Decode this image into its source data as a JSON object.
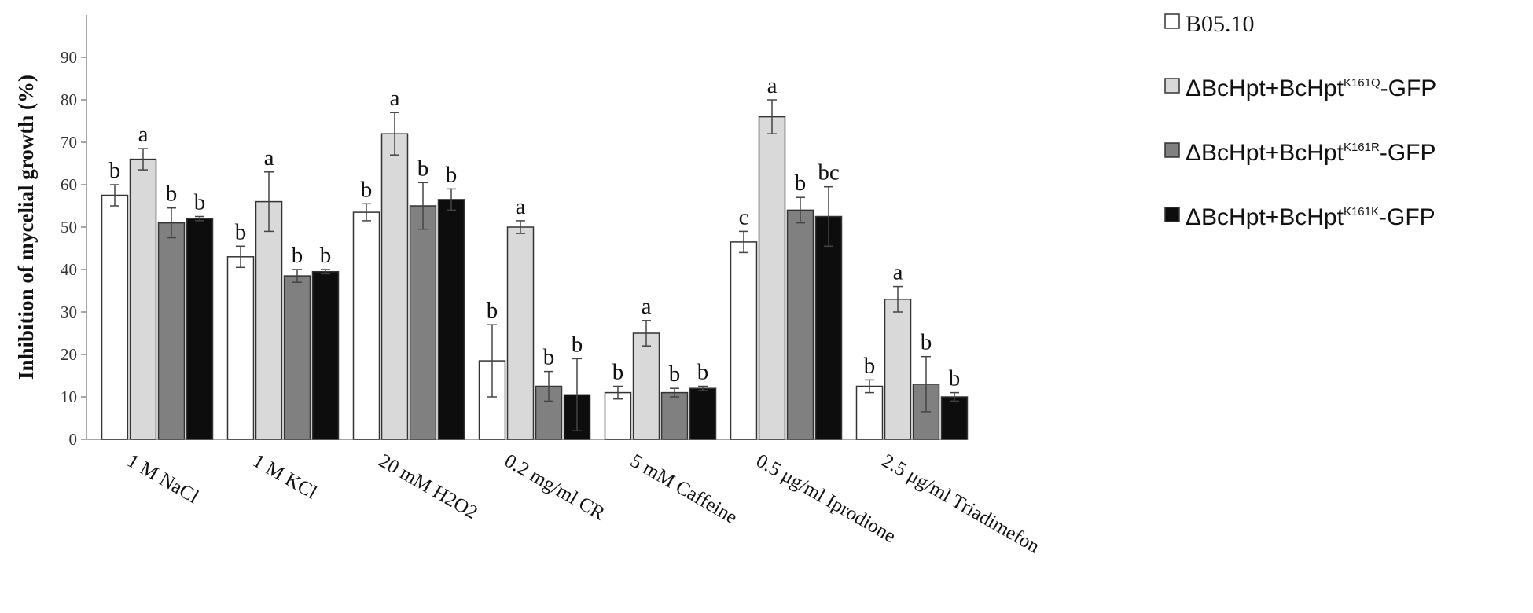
{
  "chart_data": {
    "type": "bar",
    "ylabel": "Inhibition of mycelial growth (%)",
    "ylim": [
      0,
      100
    ],
    "yticks": [
      "0",
      "10",
      "20",
      "30",
      "40",
      "50",
      "60",
      "70",
      "80",
      "90"
    ],
    "categories": [
      "1 M NaCl",
      "1 M KCl",
      "20 mM H2O2",
      "0.2 mg/ml CR",
      "5 mM Caffeine",
      "0.5 μg/ml Iprodione",
      "2.5 μg/ml Triadimefon"
    ],
    "series": [
      {
        "name": "B05.10",
        "color": "#ffffff",
        "values": [
          57.5,
          43,
          53.5,
          18.5,
          11,
          46.5,
          12.5
        ],
        "errors": [
          2.5,
          2.5,
          2,
          8.5,
          1.5,
          2.5,
          1.5
        ],
        "letters": [
          "b",
          "b",
          "b",
          "b",
          "b",
          "c",
          "b"
        ]
      },
      {
        "name": "ΔBcHpt+BcHptK161Q-GFP",
        "name_parts": [
          "ΔBcHpt+BcHpt",
          "K161Q",
          "-GFP"
        ],
        "color": "#d9d9d9",
        "values": [
          66,
          56,
          72,
          50,
          25,
          76,
          33
        ],
        "errors": [
          2.5,
          7,
          5,
          1.5,
          3,
          4,
          3
        ],
        "letters": [
          "a",
          "a",
          "a",
          "a",
          "a",
          "a",
          "a"
        ]
      },
      {
        "name": "ΔBcHpt+BcHptK161R-GFP",
        "name_parts": [
          "ΔBcHpt+BcHpt",
          "K161R",
          "-GFP"
        ],
        "color": "#808080",
        "values": [
          51,
          38.5,
          55,
          12.5,
          11,
          54,
          13
        ],
        "errors": [
          3.5,
          1.5,
          5.5,
          3.5,
          1,
          3,
          6.5
        ],
        "letters": [
          "b",
          "b",
          "b",
          "b",
          "b",
          "b",
          "b"
        ]
      },
      {
        "name": "ΔBcHpt+BcHptK161K-GFP",
        "name_parts": [
          "ΔBcHpt+BcHpt",
          "K161K",
          "-GFP"
        ],
        "color": "#0d0d0d",
        "values": [
          52,
          39.5,
          56.5,
          10.5,
          12,
          52.5,
          10
        ],
        "errors": [
          0.5,
          0.5,
          2.5,
          8.5,
          0.5,
          7,
          1
        ],
        "letters": [
          "b",
          "b",
          "b",
          "b",
          "b",
          "bc",
          "b"
        ]
      }
    ],
    "legend_position": "right"
  }
}
